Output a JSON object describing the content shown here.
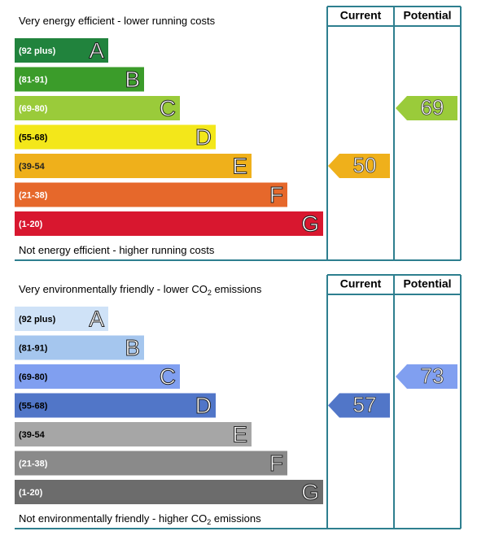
{
  "panels": [
    {
      "header_current": "Current",
      "header_potential": "Potential",
      "top_label": [
        "Very energy efficient - lower running costs"
      ],
      "bottom_label": [
        "Not energy efficient - higher running costs"
      ],
      "bands": [
        {
          "range": "(92 plus)",
          "letter": "A",
          "color": "#21833d",
          "text_color": "#ffffff"
        },
        {
          "range": "(81-91)",
          "letter": "B",
          "color": "#3b9c2a",
          "text_color": "#ffffff"
        },
        {
          "range": "(69-80)",
          "letter": "C",
          "color": "#9acb3a",
          "text_color": "#ffffff"
        },
        {
          "range": "(55-68)",
          "letter": "D",
          "color": "#f3e71a",
          "text_color": "#000000"
        },
        {
          "range": "(39-54",
          "letter": "E",
          "color": "#efb01b",
          "text_color": "#222222"
        },
        {
          "range": "(21-38)",
          "letter": "F",
          "color": "#e6682b",
          "text_color": "#ffffff"
        },
        {
          "range": "(1-20)",
          "letter": "G",
          "color": "#d8172f",
          "text_color": "#ffffff"
        }
      ],
      "current": 50,
      "potential": 69
    },
    {
      "header_current": "Current",
      "header_potential": "Potential",
      "top_label": [
        "Very environmentally friendly - lower CO",
        "2",
        " emissions"
      ],
      "bottom_label": [
        "Not environmentally friendly - higher CO",
        "2",
        " emissions"
      ],
      "bands": [
        {
          "range": "(92 plus)",
          "letter": "A",
          "color": "#cfe2f7",
          "text_color": "#000000"
        },
        {
          "range": "(81-91)",
          "letter": "B",
          "color": "#a5c6ee",
          "text_color": "#000000"
        },
        {
          "range": "(69-80)",
          "letter": "C",
          "color": "#809ff0",
          "text_color": "#000000"
        },
        {
          "range": "(55-68)",
          "letter": "D",
          "color": "#5176c8",
          "text_color": "#000000"
        },
        {
          "range": "(39-54",
          "letter": "E",
          "color": "#a6a6a6",
          "text_color": "#000000"
        },
        {
          "range": "(21-38)",
          "letter": "F",
          "color": "#8a8a8a",
          "text_color": "#ffffff"
        },
        {
          "range": "(1-20)",
          "letter": "G",
          "color": "#6c6c6c",
          "text_color": "#ffffff"
        }
      ],
      "current": 57,
      "potential": 73
    }
  ]
}
